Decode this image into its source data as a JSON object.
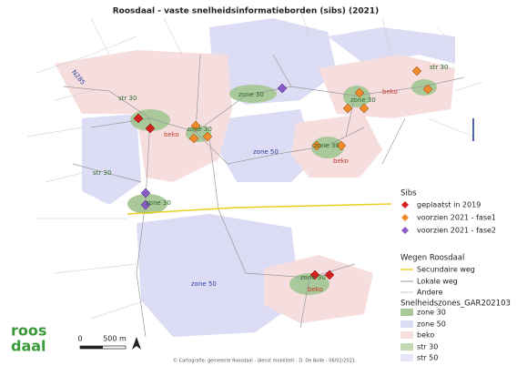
{
  "header": {
    "title": "Roosdaal - vaste snelheidsinformatieborden (sibs) (2021)"
  },
  "map": {
    "labels": [
      "zone 30",
      "zone 30",
      "zone 30",
      "str 30",
      "zone 30",
      "str 30",
      "zone 50",
      "zone 30",
      "beko",
      "beko",
      "str 30",
      "zone 50",
      "zone 30",
      "beko",
      "beko"
    ],
    "roads": [
      "N285"
    ]
  },
  "legend": {
    "sibs": {
      "title": "Sibs",
      "items": [
        "geplaatst in 2019",
        "voorzien 2021 - fase1",
        "voorzien 2021 - fase2"
      ]
    },
    "roads": {
      "title": "Wegen Roosdaal",
      "items": [
        "Secundaire weg",
        "Lokale weg",
        "Andere"
      ]
    },
    "zones": {
      "title": "Snelheidszones_GAR202103",
      "items": [
        "zone 30",
        "zone 50",
        "beko",
        "str 30",
        "str 50"
      ]
    }
  },
  "scale": {
    "start": "0",
    "end": "500 m"
  },
  "logo": {
    "top": "roos",
    "bottom": "daal"
  },
  "credit": "© Cartografie: gemeente Roosdaal - dienst mobiliteit - D. De Bolle - 06/02/2021"
}
